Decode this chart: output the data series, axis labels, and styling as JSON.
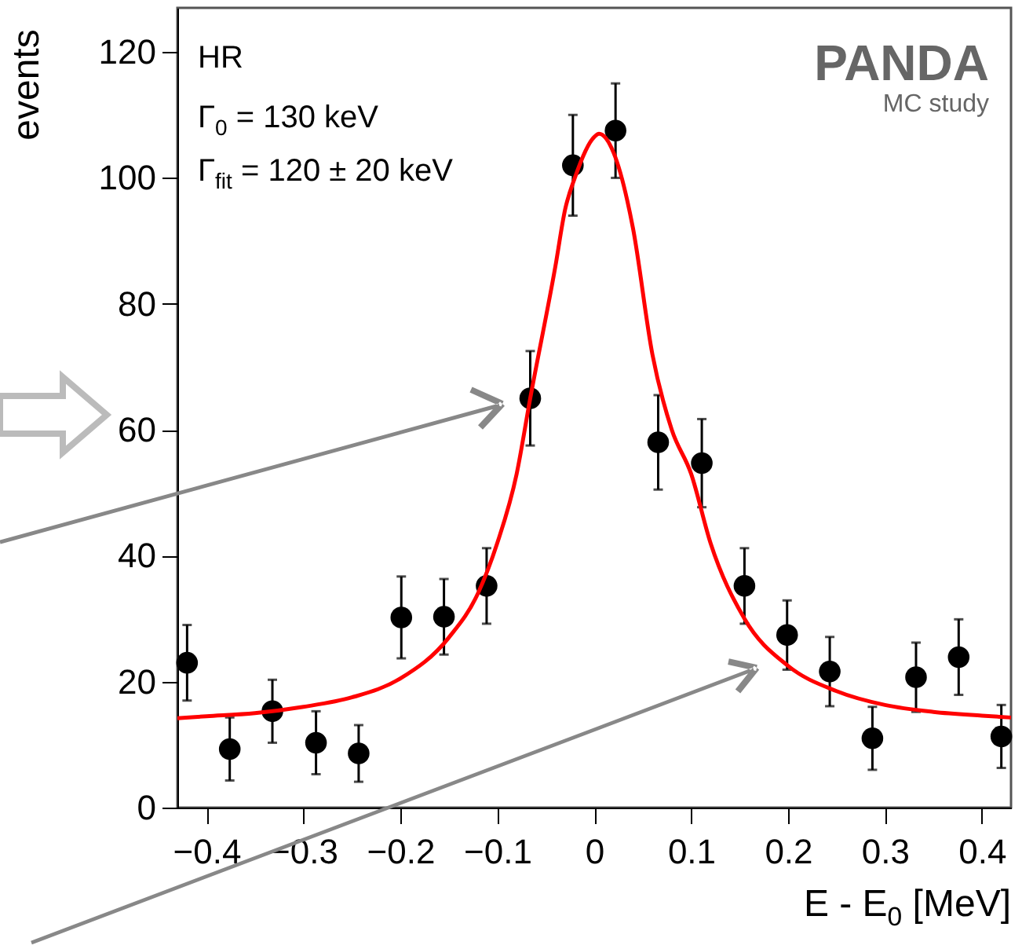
{
  "chart_data": {
    "type": "scatter",
    "xlabel": "E - E$_{0}$ [MeV]",
    "ylabel": "events",
    "xlim": [
      -0.43,
      0.43
    ],
    "ylim": [
      0,
      127
    ],
    "xticks": [
      -0.4,
      -0.3,
      -0.2,
      -0.1,
      0,
      0.1,
      0.2,
      0.3,
      0.4
    ],
    "yticks": [
      0,
      20,
      40,
      60,
      80,
      100,
      120
    ],
    "grid": false,
    "annotations": [
      "HR",
      "Γ$_{0}$  = 130 keV",
      "Γ$_{fit}$ = 120 ± 20 keV",
      "PANDA",
      "MC study"
    ],
    "series": [
      {
        "marker": "circle",
        "color": "#000000",
        "x": [
          -0.42,
          -0.376,
          -0.332,
          -0.287,
          -0.243,
          -0.199,
          -0.155,
          -0.111,
          -0.066,
          -0.022,
          0.022,
          0.066,
          0.111,
          0.155,
          0.199,
          0.243,
          0.287,
          0.332,
          0.376,
          0.42
        ],
        "values": [
          23,
          9.3,
          15.3,
          10.3,
          8.6,
          30.2,
          30.3,
          35.2,
          65,
          102,
          107.5,
          58,
          54.7,
          35.2,
          27.4,
          21.6,
          11,
          20.7,
          23.9,
          11.3
        ],
        "errors": [
          6,
          5,
          5,
          5,
          4.5,
          6.5,
          6,
          6,
          7.5,
          8,
          7.5,
          7.5,
          7,
          6,
          5.5,
          5.5,
          5,
          5.5,
          6,
          5
        ]
      },
      {
        "type": "line",
        "color": "#ff0000",
        "x": [
          -0.43,
          -0.4,
          -0.35,
          -0.3,
          -0.25,
          -0.2,
          -0.15,
          -0.12,
          -0.1,
          -0.08,
          -0.066,
          -0.04,
          -0.03,
          -0.02,
          0,
          0.005,
          0.02,
          0.04,
          0.06,
          0.08,
          0.1,
          0.12,
          0.155,
          0.2,
          0.25,
          0.3,
          0.35,
          0.4,
          0.43
        ],
        "values": [
          14.2,
          14.5,
          15,
          16,
          17.5,
          20.5,
          27,
          34,
          42,
          53,
          65,
          86,
          95,
          100,
          106.5,
          107,
          104,
          92,
          72,
          60,
          53,
          42,
          30,
          22.5,
          18.5,
          16.3,
          15.2,
          14.6,
          14.3
        ]
      }
    ]
  }
}
